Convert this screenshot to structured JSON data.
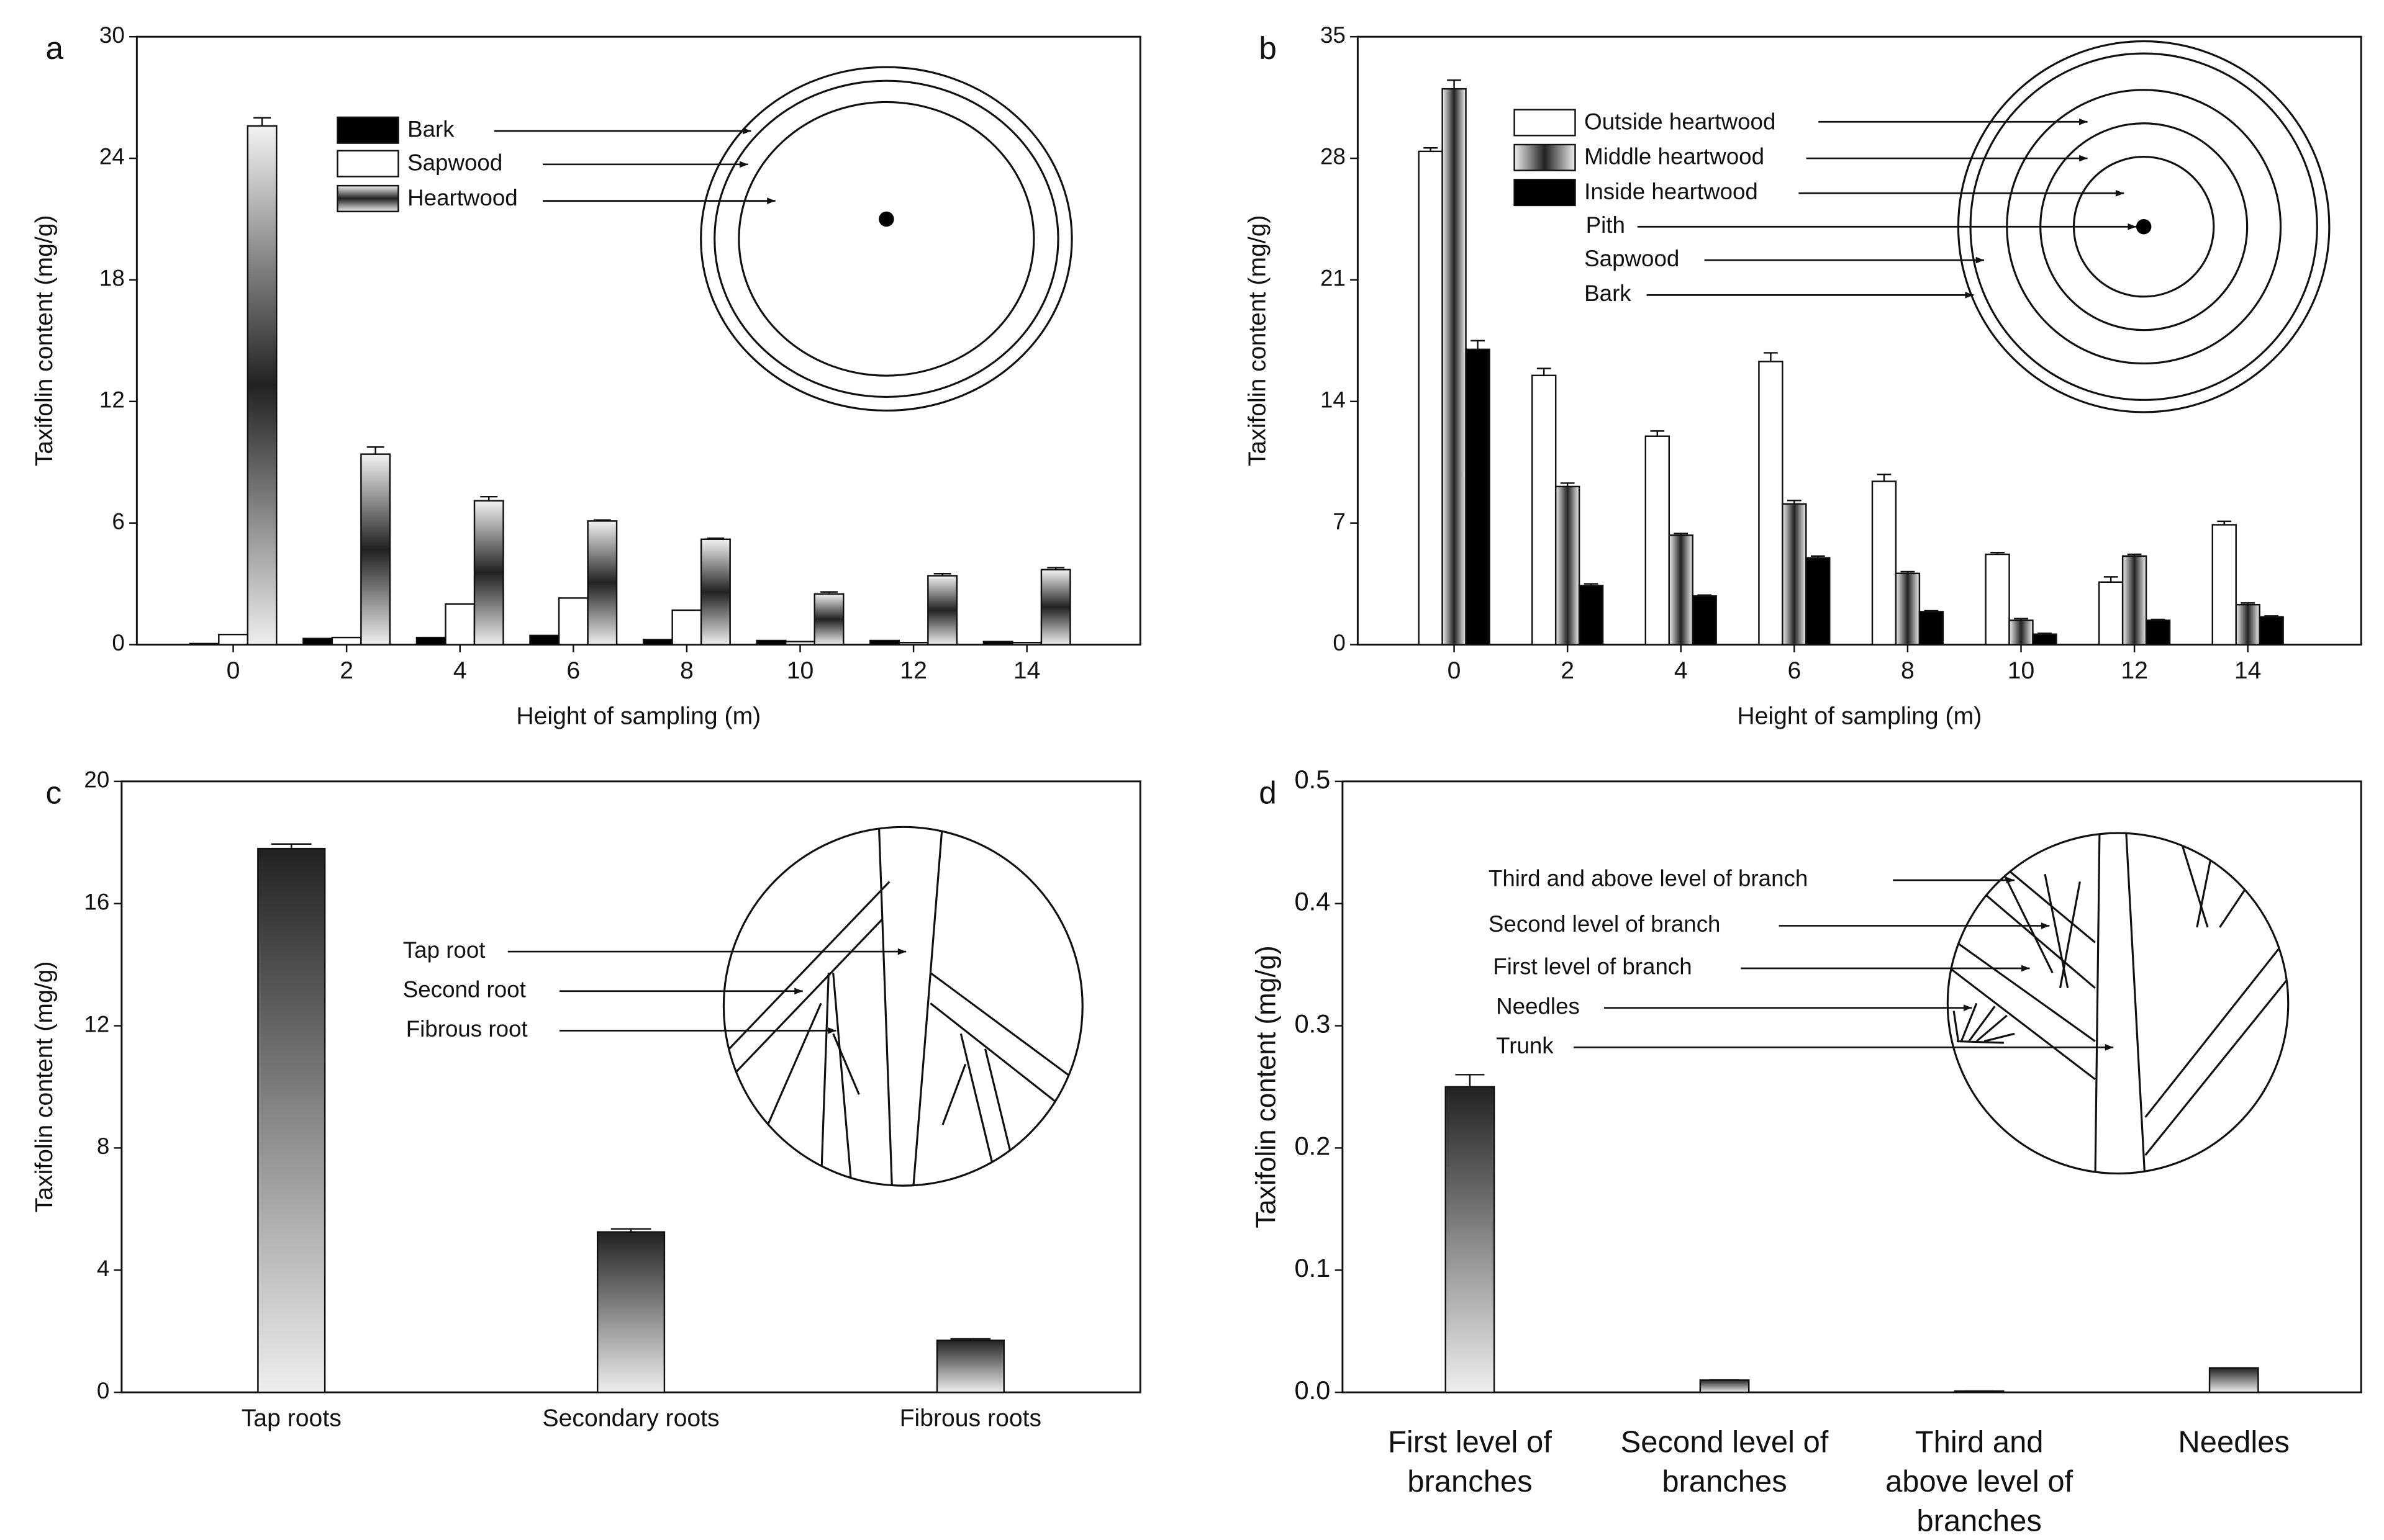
{
  "chart_data": [
    {
      "type": "bar",
      "panel": "a",
      "ylabel": "Taxifolin content (mg/g)",
      "xlabel": "Height of sampling (m)",
      "categories": [
        "0",
        "2",
        "4",
        "6",
        "8",
        "10",
        "12",
        "14"
      ],
      "series": [
        {
          "name": "Bark",
          "color": "#000000",
          "values": [
            0.05,
            0.3,
            0.35,
            0.45,
            0.25,
            0.2,
            0.2,
            0.15
          ]
        },
        {
          "name": "Sapwood",
          "color": "#ffffff",
          "values": [
            0.5,
            0.35,
            2.0,
            2.3,
            1.7,
            0.15,
            0.1,
            0.1
          ]
        },
        {
          "name": "Heartwood",
          "color": "#222222",
          "values": [
            25.6,
            9.4,
            7.1,
            6.1,
            5.2,
            2.5,
            3.4,
            3.7
          ],
          "errors": [
            0.4,
            0.35,
            0.2,
            0.05,
            0.05,
            0.1,
            0.1,
            0.1
          ]
        }
      ],
      "ylim": [
        0,
        30
      ],
      "yticks": [
        0,
        6,
        12,
        18,
        24,
        30
      ]
    },
    {
      "type": "bar",
      "panel": "b",
      "ylabel": "Taxifolin content (mg/g)",
      "xlabel": "Height of sampling (m)",
      "categories": [
        "0",
        "2",
        "4",
        "6",
        "8",
        "10",
        "12",
        "14"
      ],
      "series": [
        {
          "name": "Outside heartwood",
          "color": "#ffffff",
          "values": [
            28.4,
            15.5,
            12.0,
            16.3,
            9.4,
            5.2,
            3.6,
            6.9
          ],
          "errors": [
            0.2,
            0.4,
            0.3,
            0.5,
            0.4,
            0.1,
            0.3,
            0.2
          ]
        },
        {
          "name": "Middle heartwood",
          "color": "#222222",
          "values": [
            32.0,
            9.1,
            6.3,
            8.1,
            4.1,
            1.4,
            5.1,
            2.3
          ],
          "errors": [
            0.5,
            0.2,
            0.1,
            0.2,
            0.1,
            0.1,
            0.1,
            0.1
          ]
        },
        {
          "name": "Inside heartwood",
          "color": "#000000",
          "values": [
            17.0,
            3.4,
            2.8,
            5.0,
            1.9,
            0.6,
            1.4,
            1.6
          ],
          "errors": [
            0.5,
            0.1,
            0.05,
            0.1,
            0.05,
            0.05,
            0.05,
            0.05
          ]
        }
      ],
      "annotations": [
        "Pith",
        "Sapwood",
        "Bark"
      ],
      "ylim": [
        0,
        35
      ],
      "yticks": [
        0,
        7,
        14,
        21,
        28,
        35
      ]
    },
    {
      "type": "bar",
      "panel": "c",
      "ylabel": "Taxifolin content (mg/g)",
      "categories": [
        "Tap roots",
        "Secondary roots",
        "Fibrous roots"
      ],
      "series": [
        {
          "color": "#222222",
          "values": [
            17.8,
            5.25,
            1.7
          ],
          "errors": [
            0.15,
            0.1,
            0.05
          ]
        }
      ],
      "annotations": [
        "Tap root",
        "Second root",
        "Fibrous root"
      ],
      "ylim": [
        0,
        20
      ],
      "yticks": [
        0,
        4,
        8,
        12,
        16,
        20
      ]
    },
    {
      "type": "bar",
      "panel": "d",
      "ylabel": "Taxifolin content (mg/g)",
      "categories": [
        "First level of\nbranches",
        "Second level of\nbranches",
        "Third and\nabove level of\nbranches",
        "Needles"
      ],
      "series": [
        {
          "color": "#222222",
          "values": [
            0.25,
            0.01,
            0.001,
            0.02
          ],
          "errors": [
            0.01,
            0,
            0,
            0
          ]
        }
      ],
      "annotations": [
        "Third and  above level of branch",
        "Second level of branch",
        "First level of branch",
        "Needles",
        "Trunk"
      ],
      "ylim": [
        0,
        0.5
      ],
      "yticks": [
        {
          "value": 0,
          "label": "0.0"
        },
        0.1,
        0.2,
        0.3,
        0.4,
        0.5
      ]
    }
  ]
}
